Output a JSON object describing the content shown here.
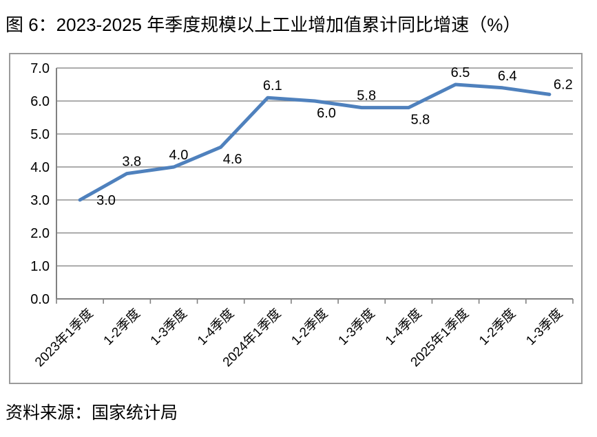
{
  "page": {
    "title": "图 6：2023-2025 年季度规模以上工业增加值累计同比增速（%）",
    "source_note": "资料来源：国家统计局"
  },
  "chart_data": {
    "type": "line",
    "title": "图 6：2023-2025 年季度规模以上工业增加值累计同比增速（%）",
    "categories": [
      "2023年1季度",
      "1-2季度",
      "1-3季度",
      "1-4季度",
      "2024年1季度",
      "1-2季度",
      "1-3季度",
      "1-4季度",
      "2025年1季度",
      "1-2季度",
      "1-3季度"
    ],
    "values": [
      3.0,
      3.8,
      4.0,
      4.6,
      6.1,
      6.0,
      5.8,
      5.8,
      6.5,
      6.4,
      6.2
    ],
    "value_labels": [
      "3.0",
      "3.8",
      "4.0",
      "4.6",
      "6.1",
      "6.0",
      "5.8",
      "5.8",
      "6.5",
      "6.4",
      "6.2"
    ],
    "label_positions": [
      "right",
      "above",
      "above",
      "below",
      "above",
      "below",
      "above",
      "below",
      "above",
      "above",
      "above-right"
    ],
    "xlabel": "",
    "ylabel": "",
    "ylim": [
      0.0,
      7.0
    ],
    "ytick_labels": [
      "0.0",
      "1.0",
      "2.0",
      "3.0",
      "4.0",
      "5.0",
      "6.0",
      "7.0"
    ],
    "grid": true,
    "legend": false,
    "line_color": "#4f81bd",
    "axis_color": "#808080",
    "gridline_color": "#919191",
    "border_color": "#9b9b9b",
    "label_color": "#000000",
    "source": "资料来源：国家统计局"
  }
}
